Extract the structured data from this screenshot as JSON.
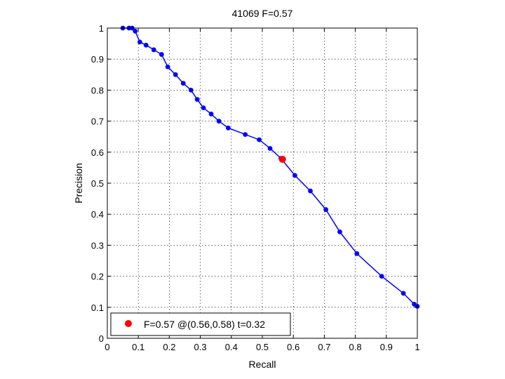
{
  "chart_data": {
    "type": "line",
    "title": "41069 F=0.57",
    "xlabel": "Recall",
    "ylabel": "Precision",
    "xlim": [
      0,
      1
    ],
    "ylim": [
      0,
      1
    ],
    "xticks": [
      "0",
      "0.1",
      "0.2",
      "0.3",
      "0.4",
      "0.5",
      "0.6",
      "0.7",
      "0.8",
      "0.9",
      "1"
    ],
    "yticks": [
      "0",
      "0.1",
      "0.2",
      "0.3",
      "0.4",
      "0.5",
      "0.6",
      "0.7",
      "0.8",
      "0.9",
      "1"
    ],
    "grid": true,
    "legend_position": "bottom-left",
    "series": [
      {
        "color": "#0000ff",
        "x": [
          0.05,
          0.07,
          0.08,
          0.09,
          0.105,
          0.125,
          0.15,
          0.175,
          0.195,
          0.22,
          0.245,
          0.27,
          0.29,
          0.31,
          0.335,
          0.36,
          0.39,
          0.445,
          0.49,
          0.525,
          0.56,
          0.605,
          0.655,
          0.705,
          0.75,
          0.805,
          0.885,
          0.955,
          0.99,
          1.0
        ],
        "y": [
          1.0,
          1.0,
          1.0,
          0.99,
          0.955,
          0.945,
          0.93,
          0.915,
          0.875,
          0.85,
          0.822,
          0.8,
          0.77,
          0.743,
          0.723,
          0.7,
          0.678,
          0.657,
          0.64,
          0.612,
          0.58,
          0.525,
          0.475,
          0.415,
          0.343,
          0.273,
          0.2,
          0.145,
          0.11,
          0.103
        ]
      }
    ],
    "best_point": {
      "label": "F=0.57 @(0.56,0.58) t=0.32",
      "x": 0.565,
      "y": 0.577,
      "color": "#ff0000"
    }
  }
}
